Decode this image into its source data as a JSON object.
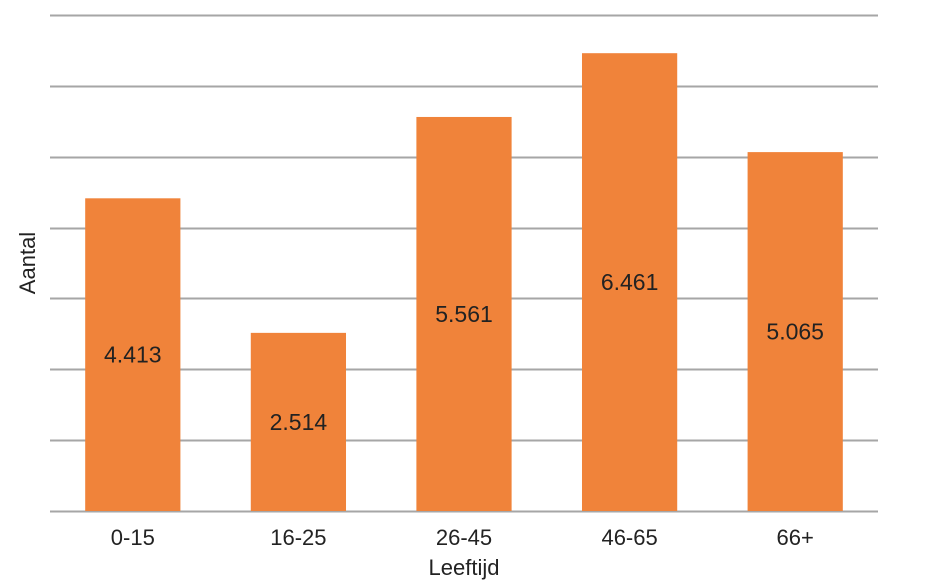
{
  "chart_data": {
    "type": "bar",
    "categories": [
      "0-15",
      "16-25",
      "26-45",
      "46-65",
      "66+"
    ],
    "values": [
      4413,
      2514,
      5561,
      6461,
      5065
    ],
    "value_labels": [
      "4.413",
      "2.514",
      "5.561",
      "6.461",
      "5.065"
    ],
    "title": "",
    "xlabel": "Leeftijd",
    "ylabel": "Aantal",
    "ylim": [
      0,
      7000
    ],
    "grid": true,
    "legend": "none",
    "colors": {
      "bar": "#F0833A",
      "grid": "#A6A6A6"
    }
  }
}
